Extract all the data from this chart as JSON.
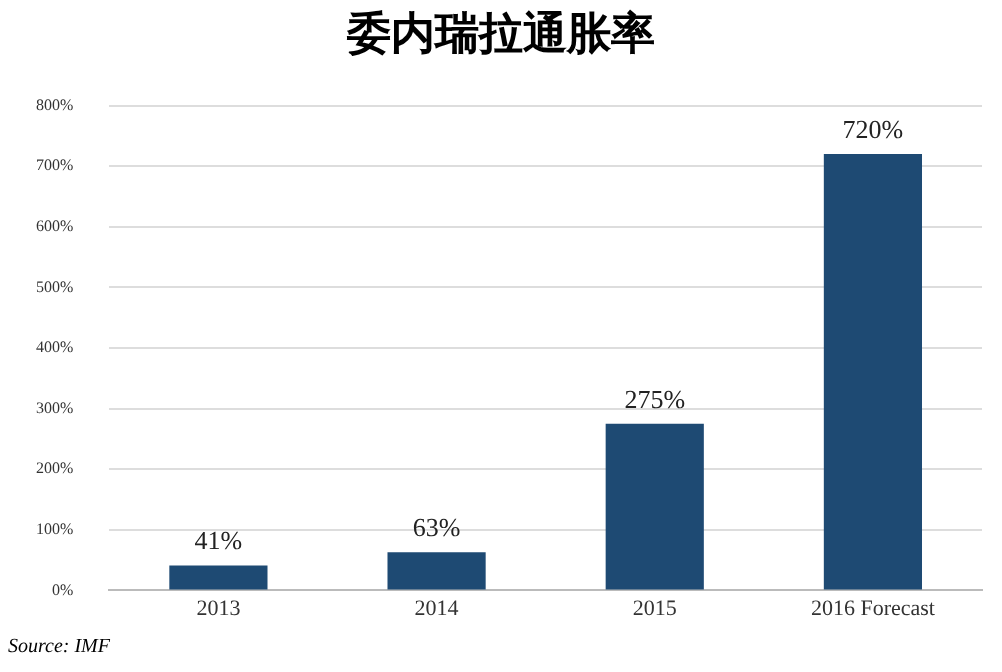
{
  "chart_data": {
    "type": "bar",
    "title": "委内瑞拉通胀率",
    "categories": [
      "2013",
      "2014",
      "2015",
      "2016 Forecast"
    ],
    "values": [
      41,
      63,
      275,
      720
    ],
    "color": "#1e4a73",
    "value_labels": [
      "41%",
      "63%",
      "275%",
      "720%"
    ],
    "ylim": [
      0,
      800
    ],
    "yticks": [
      {
        "value": 0,
        "label": "0%"
      },
      {
        "value": 100,
        "label": "100%"
      },
      {
        "value": 200,
        "label": "200%"
      },
      {
        "value": 300,
        "label": "300%"
      },
      {
        "value": 400,
        "label": "400%"
      },
      {
        "value": 500,
        "label": "500%"
      },
      {
        "value": 600,
        "label": "600%"
      },
      {
        "value": 700,
        "label": "700%"
      },
      {
        "value": 800,
        "label": "800%"
      }
    ],
    "grid": "y",
    "annotations": [
      "Source: IMF"
    ]
  }
}
